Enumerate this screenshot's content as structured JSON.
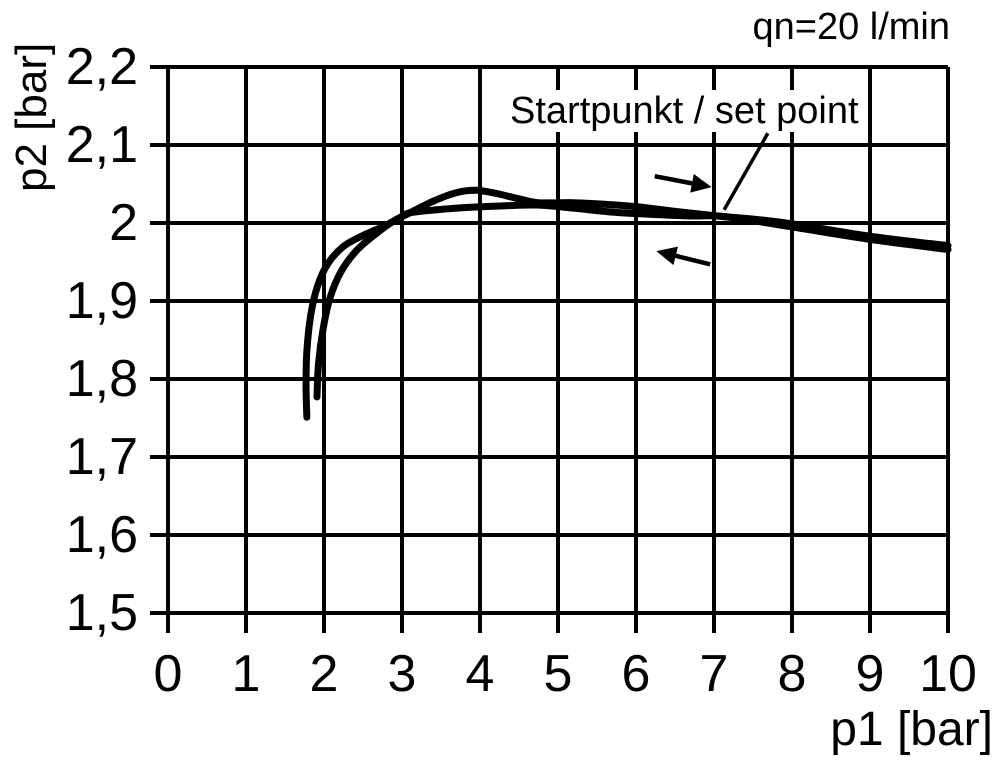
{
  "annotations": {
    "flow_label": "qn=20 l/min",
    "set_point_label": "Startpunkt / set point"
  },
  "x_axis": {
    "title": "p1 [bar]",
    "ticks": [
      {
        "v": 0,
        "label": "0"
      },
      {
        "v": 1,
        "label": "1"
      },
      {
        "v": 2,
        "label": "2"
      },
      {
        "v": 3,
        "label": "3"
      },
      {
        "v": 4,
        "label": "4"
      },
      {
        "v": 5,
        "label": "5"
      },
      {
        "v": 6,
        "label": "6"
      },
      {
        "v": 7,
        "label": "7"
      },
      {
        "v": 8,
        "label": "8"
      },
      {
        "v": 9,
        "label": "9"
      },
      {
        "v": 10,
        "label": "10"
      }
    ]
  },
  "y_axis": {
    "title": "p2 [bar]",
    "ticks": [
      {
        "v": 2.2,
        "label": "2,2"
      },
      {
        "v": 2.1,
        "label": "2,1"
      },
      {
        "v": 2.0,
        "label": "2"
      },
      {
        "v": 1.9,
        "label": "1,9"
      },
      {
        "v": 1.8,
        "label": "1,8"
      },
      {
        "v": 1.7,
        "label": "1,7"
      },
      {
        "v": 1.6,
        "label": "1,6"
      },
      {
        "v": 1.5,
        "label": "1,5"
      }
    ]
  },
  "colors": {
    "foreground": "#000000",
    "background": "#ffffff"
  },
  "chart_data": {
    "type": "line",
    "title": "qn=20 l/min",
    "xlabel": "p1 [bar]",
    "ylabel": "p2 [bar]",
    "xlim": [
      0,
      10
    ],
    "ylim": [
      1.5,
      2.2
    ],
    "x_ticks": [
      0,
      1,
      2,
      3,
      4,
      5,
      6,
      7,
      8,
      9,
      10
    ],
    "y_ticks": [
      1.5,
      1.6,
      1.7,
      1.8,
      1.9,
      2.0,
      2.1,
      2.2
    ],
    "grid": true,
    "legend": "none",
    "set_point": {
      "p1": 7.1,
      "p2": 2.01
    },
    "series": [
      {
        "name": "increasing p1 (hysteresis branch, rightward arrow)",
        "direction": "rightward",
        "points": [
          [
            1.91,
            1.777
          ],
          [
            1.93,
            1.82
          ],
          [
            1.99,
            1.865
          ],
          [
            2.08,
            1.905
          ],
          [
            2.22,
            1.938
          ],
          [
            2.42,
            1.965
          ],
          [
            2.65,
            1.985
          ],
          [
            2.9,
            2.003
          ],
          [
            3.1,
            2.013
          ],
          [
            3.4,
            2.028
          ],
          [
            3.7,
            2.039
          ],
          [
            3.95,
            2.042
          ],
          [
            4.2,
            2.038
          ],
          [
            4.5,
            2.031
          ],
          [
            4.75,
            2.026
          ],
          [
            5.2,
            2.026
          ],
          [
            5.6,
            2.024
          ],
          [
            6.0,
            2.021
          ],
          [
            6.5,
            2.015
          ],
          [
            7.05,
            2.009
          ],
          [
            7.5,
            2.005
          ],
          [
            8.0,
            1.999
          ],
          [
            9.0,
            1.983
          ],
          [
            10.0,
            1.971
          ]
        ]
      },
      {
        "name": "decreasing p1 (hysteresis branch, leftward arrow)",
        "direction": "leftward",
        "points": [
          [
            1.78,
            1.751
          ],
          [
            1.77,
            1.79
          ],
          [
            1.78,
            1.835
          ],
          [
            1.83,
            1.882
          ],
          [
            1.92,
            1.92
          ],
          [
            2.05,
            1.948
          ],
          [
            2.25,
            1.97
          ],
          [
            2.5,
            1.984
          ],
          [
            2.75,
            1.995
          ],
          [
            3.0,
            2.008
          ],
          [
            3.1,
            2.013
          ],
          [
            3.45,
            2.017
          ],
          [
            3.85,
            2.02
          ],
          [
            4.3,
            2.022
          ],
          [
            4.73,
            2.023
          ],
          [
            5.2,
            2.019
          ],
          [
            5.7,
            2.014
          ],
          [
            6.2,
            2.011
          ],
          [
            6.7,
            2.009
          ],
          [
            7.05,
            2.009
          ],
          [
            7.5,
            2.003
          ],
          [
            8.0,
            1.995
          ],
          [
            9.0,
            1.979
          ],
          [
            10.0,
            1.966
          ]
        ]
      }
    ],
    "direction_arrows": [
      {
        "direction": "right",
        "from": [
          6.24,
          2.06
        ],
        "to": [
          6.97,
          2.046
        ]
      },
      {
        "direction": "left",
        "from": [
          6.95,
          1.947
        ],
        "to": [
          6.26,
          1.964
        ]
      }
    ],
    "leader_line": {
      "from": [
        7.69,
        2.115
      ],
      "to": [
        7.13,
        2.017
      ]
    }
  }
}
